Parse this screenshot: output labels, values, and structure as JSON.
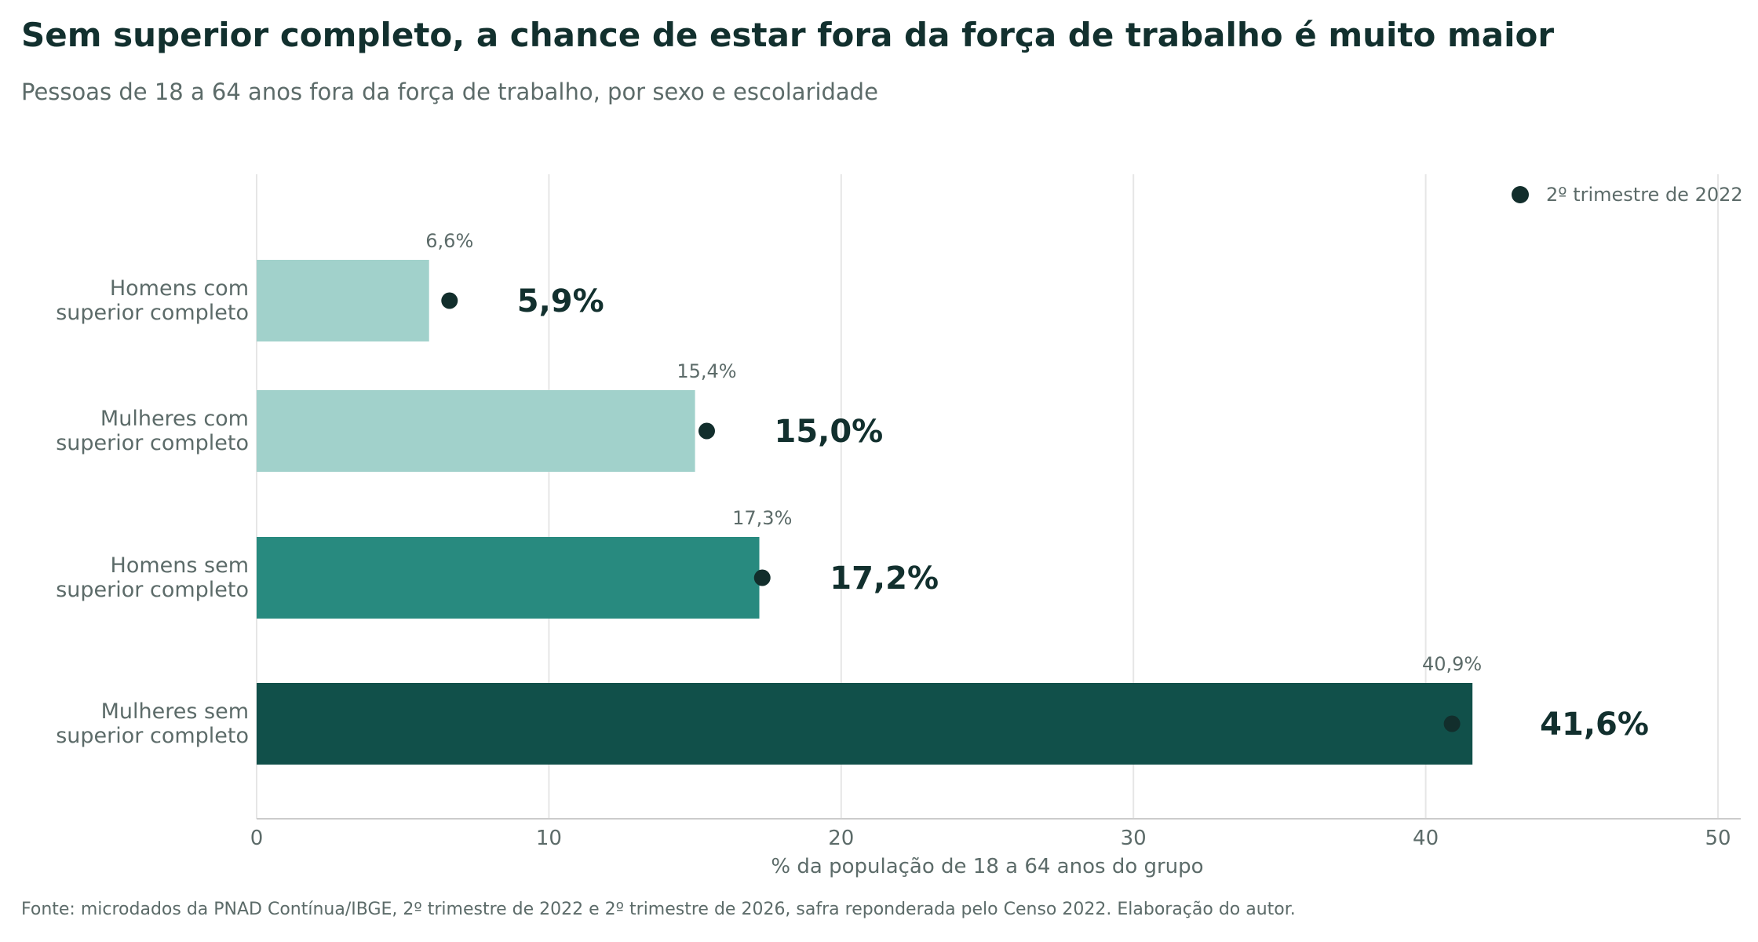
{
  "title": "Sem superior completo, a chance de estar fora da força de trabalho é muito maior",
  "subtitle": "Pessoas de 18 a 64 anos fora da força de trabalho, por sexo e escolaridade",
  "footer": "Fonte: microdados da PNAD Contínua/IBGE, 2º trimestre de 2022 e 2º trimestre de 2026, safra reponderada pelo Censo 2022. Elaboração do autor.",
  "colors": {
    "bar_light": "#a1d1cb",
    "bar_mid": "#288a7f",
    "bar_dark": "#11504a",
    "dot": "#122e2c",
    "grid": "#e6e6e6",
    "axis": "#cccccc"
  },
  "chart_data": {
    "type": "bar",
    "orientation": "horizontal",
    "categories": [
      [
        "Homens com",
        "superior completo"
      ],
      [
        "Mulheres com",
        "superior completo"
      ],
      [
        "Homens sem",
        "superior completo"
      ],
      [
        "Mulheres sem",
        "superior completo"
      ]
    ],
    "values": [
      5.9,
      15.0,
      17.2,
      41.6
    ],
    "value_labels": [
      "5,9%",
      "15,0%",
      "17,2%",
      "41,6%"
    ],
    "bar_colors": [
      "#a1d1cb",
      "#a1d1cb",
      "#288a7f",
      "#11504a"
    ],
    "markers": {
      "name": "2º trimestre de 2022",
      "values": [
        6.6,
        15.4,
        17.3,
        40.9
      ],
      "labels": [
        "6,6%",
        "15,4%",
        "17,3%",
        "40,9%"
      ]
    },
    "xlabel": "% da população de 18 a 64 anos do grupo",
    "xlim": [
      0,
      50
    ],
    "xticks": [
      0,
      10,
      20,
      30,
      40,
      50
    ],
    "grid": true,
    "legend": "top-right"
  }
}
